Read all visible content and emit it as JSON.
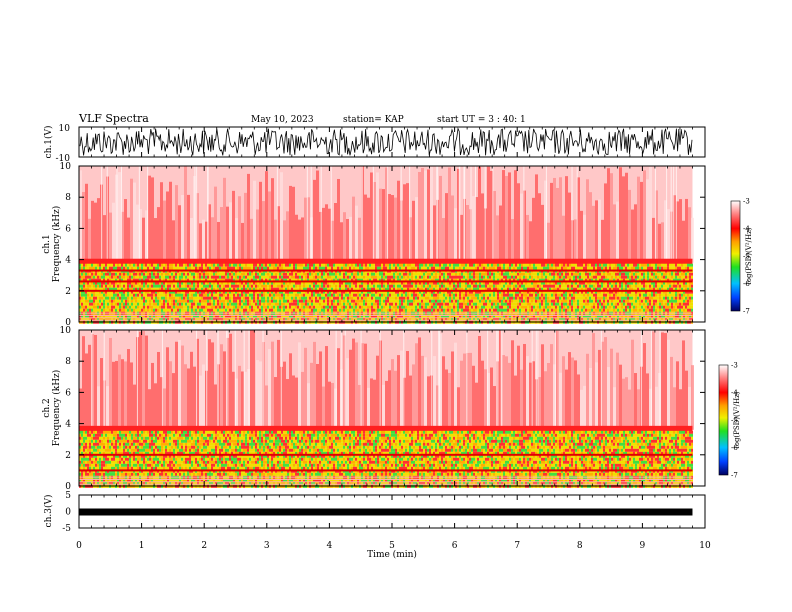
{
  "header": {
    "title": "VLF Spectra",
    "date": "May 10, 2023",
    "station": "station= KAP",
    "start": "start  UT =   3 : 40: 1"
  },
  "chart_data": [
    {
      "type": "line",
      "name": "ch1-waveform",
      "ylabel": "ch.1(V)",
      "ylim": [
        -10,
        10
      ],
      "yticks": [
        "10",
        "-10"
      ],
      "xlim": [
        0,
        10
      ],
      "note_values": "dense noise signal filling roughly -9 to 9 V over 0-9.8 min"
    },
    {
      "type": "heatmap",
      "name": "ch1-spectrogram",
      "ylabel": "ch.1\nFrequency (kHz)",
      "ylim": [
        0,
        10
      ],
      "yticks": [
        "0",
        "2",
        "4",
        "6",
        "8",
        "10"
      ],
      "xlim": [
        0,
        10
      ],
      "colorbar": {
        "label": "log(PSD)(V²/Hz)",
        "range": [
          -7,
          -3
        ],
        "ticks": [
          "-3",
          "-4",
          "-5",
          "-6",
          "-7"
        ]
      },
      "bands_khz": {
        "high_power_below": 3.8,
        "red_lines": [
          2.0,
          2.6,
          3.3
        ]
      }
    },
    {
      "type": "heatmap",
      "name": "ch2-spectrogram",
      "ylabel": "ch.2\nFrequency (kHz)",
      "ylim": [
        0,
        10
      ],
      "yticks": [
        "0",
        "2",
        "4",
        "6",
        "8",
        "10"
      ],
      "xlim": [
        0,
        10
      ],
      "colorbar": {
        "label": "log(PSD)(V²/Hz)",
        "range": [
          -7,
          -3
        ],
        "ticks": [
          "-3",
          "-4",
          "-5",
          "-6",
          "-7"
        ]
      },
      "bands_khz": {
        "high_power_below": 3.6,
        "red_lines": [
          1.0,
          2.0
        ]
      }
    },
    {
      "type": "line",
      "name": "ch3-waveform",
      "ylabel": "ch.3(V)",
      "ylim": [
        -5,
        5
      ],
      "yticks": [
        "5",
        "0",
        "-5"
      ],
      "xlim": [
        0,
        10
      ],
      "values_constant": 0,
      "xlabel": "Time (min)",
      "xticks": [
        "0",
        "1",
        "2",
        "3",
        "4",
        "5",
        "6",
        "7",
        "8",
        "9",
        "10"
      ]
    }
  ],
  "colors": {
    "axis": "#000000",
    "heat_low": "#ff4040",
    "heat_high": "#ffd000",
    "green": "#40e040"
  }
}
